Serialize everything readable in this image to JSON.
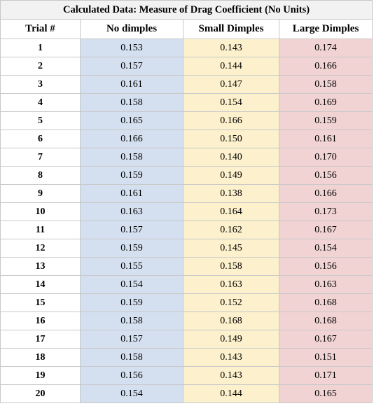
{
  "table": {
    "title": "Calculated Data: Measure of Drag Coefficient (No Units)",
    "headers": {
      "trial": "Trial #",
      "no_dimples": "No dimples",
      "small_dimples": "Small Dimples",
      "large_dimples": "Large Dimples"
    },
    "colors": {
      "no_dimples": "#d4e0f0",
      "small_dimples": "#fcf1cc",
      "large_dimples": "#f1d3d3"
    },
    "rows": [
      {
        "trial": "1",
        "no": "0.153",
        "small": "0.143",
        "large": "0.174"
      },
      {
        "trial": "2",
        "no": "0.157",
        "small": "0.144",
        "large": "0.166"
      },
      {
        "trial": "3",
        "no": "0.161",
        "small": "0.147",
        "large": "0.158"
      },
      {
        "trial": "4",
        "no": "0.158",
        "small": "0.154",
        "large": "0.169"
      },
      {
        "trial": "5",
        "no": "0.165",
        "small": "0.166",
        "large": "0.159"
      },
      {
        "trial": "6",
        "no": "0.166",
        "small": "0.150",
        "large": "0.161"
      },
      {
        "trial": "7",
        "no": "0.158",
        "small": "0.140",
        "large": "0.170"
      },
      {
        "trial": "8",
        "no": "0.159",
        "small": "0.149",
        "large": "0.156"
      },
      {
        "trial": "9",
        "no": "0.161",
        "small": "0.138",
        "large": "0.166"
      },
      {
        "trial": "10",
        "no": "0.163",
        "small": "0.164",
        "large": "0.173"
      },
      {
        "trial": "11",
        "no": "0.157",
        "small": "0.162",
        "large": "0.167"
      },
      {
        "trial": "12",
        "no": "0.159",
        "small": "0.145",
        "large": "0.154"
      },
      {
        "trial": "13",
        "no": "0.155",
        "small": "0.158",
        "large": "0.156"
      },
      {
        "trial": "14",
        "no": "0.154",
        "small": "0.163",
        "large": "0.163"
      },
      {
        "trial": "15",
        "no": "0.159",
        "small": "0.152",
        "large": "0.168"
      },
      {
        "trial": "16",
        "no": "0.158",
        "small": "0.168",
        "large": "0.168"
      },
      {
        "trial": "17",
        "no": "0.157",
        "small": "0.149",
        "large": "0.167"
      },
      {
        "trial": "18",
        "no": "0.158",
        "small": "0.143",
        "large": "0.151"
      },
      {
        "trial": "19",
        "no": "0.156",
        "small": "0.143",
        "large": "0.171"
      },
      {
        "trial": "20",
        "no": "0.154",
        "small": "0.144",
        "large": "0.165"
      }
    ]
  }
}
